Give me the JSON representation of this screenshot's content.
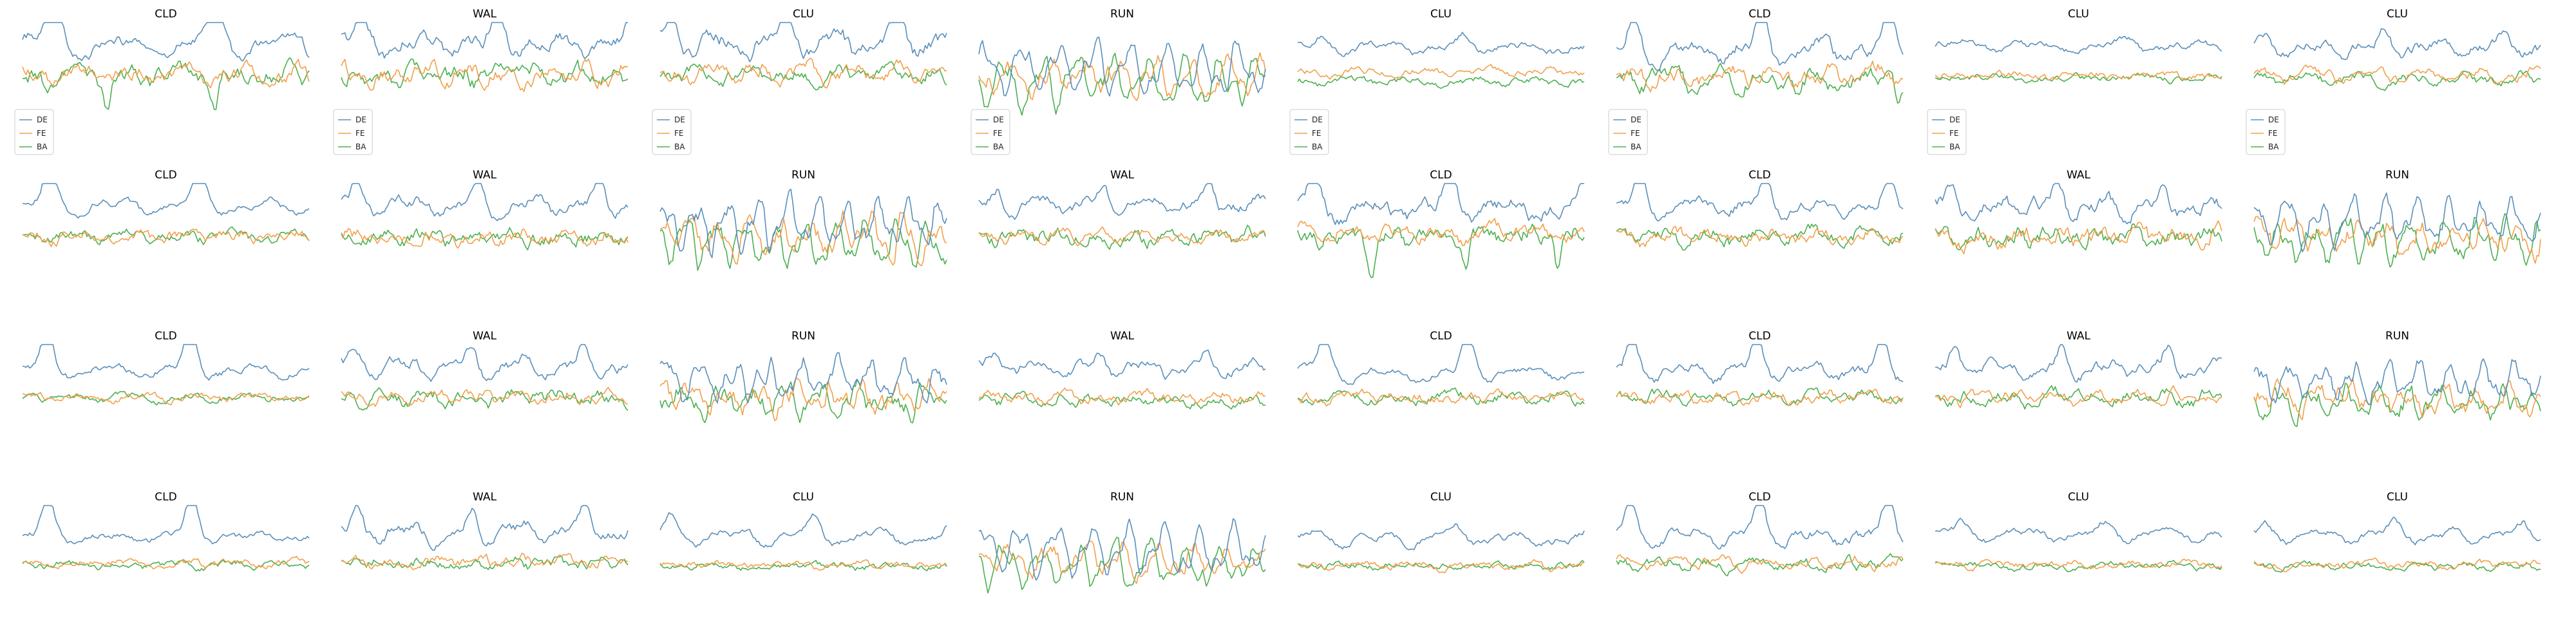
{
  "colors": {
    "DE": "#5b8fb9",
    "FE": "#f0a04b",
    "BA": "#4caf50"
  },
  "chart_data": {
    "type": "line",
    "rows": 4,
    "cols": 8,
    "series_names": [
      "DE",
      "FE",
      "BA"
    ],
    "grid": false,
    "axes_visible": false,
    "legend_location": "lower-left",
    "legend_row": 0,
    "x": {
      "start": 0,
      "end": 160,
      "step": 1
    },
    "panels": [
      {
        "title": "CLD",
        "legend": true,
        "series": {
          "DE": {
            "base": 2.5,
            "amp": 1.6,
            "period": 45,
            "peak": 3.5,
            "jitter": 0.3,
            "phase": 0.1
          },
          "FE": {
            "base": 0.0,
            "amp": 0.9,
            "period": 30,
            "jitter": 0.4,
            "phase": 1.1
          },
          "BA": {
            "base": 0.0,
            "amp": 0.9,
            "period": 30,
            "jitter": 0.5,
            "phase": 2.0,
            "dips": 2.4
          }
        }
      },
      {
        "title": "WAL",
        "legend": true,
        "series": {
          "DE": {
            "base": 2.6,
            "amp": 1.2,
            "period": 38,
            "peak": 2.5,
            "jitter": 0.4,
            "phase": 0.7
          },
          "FE": {
            "base": 0.0,
            "amp": 1.0,
            "period": 22,
            "jitter": 0.5,
            "phase": 0.3
          },
          "BA": {
            "base": 0.0,
            "amp": 0.8,
            "period": 22,
            "jitter": 0.5,
            "phase": 1.7
          }
        }
      },
      {
        "title": "CLU",
        "legend": true,
        "series": {
          "DE": {
            "base": 2.6,
            "amp": 1.5,
            "period": 32,
            "peak": 2.8,
            "jitter": 0.5,
            "phase": 1.4
          },
          "FE": {
            "base": 0.2,
            "amp": 0.9,
            "period": 26,
            "jitter": 0.4,
            "phase": 0.9
          },
          "BA": {
            "base": 0.0,
            "amp": 0.7,
            "period": 26,
            "jitter": 0.4,
            "phase": 2.5
          }
        }
      },
      {
        "title": "RUN",
        "legend": true,
        "series": {
          "DE": {
            "base": 0.5,
            "amp": 3.2,
            "period": 20,
            "peak": 0,
            "jitter": 0.4,
            "phase": 0.2
          },
          "FE": {
            "base": 0.0,
            "amp": 2.0,
            "period": 20,
            "jitter": 0.6,
            "phase": 1.9
          },
          "BA": {
            "base": -0.5,
            "amp": 3.0,
            "period": 20,
            "jitter": 0.5,
            "phase": 3.3
          }
        }
      },
      {
        "title": "CLU",
        "legend": true,
        "series": {
          "DE": {
            "base": 2.3,
            "amp": 0.6,
            "period": 40,
            "peak": 0.8,
            "jitter": 0.2,
            "phase": 0.5
          },
          "FE": {
            "base": 0.3,
            "amp": 0.4,
            "period": 34,
            "jitter": 0.2,
            "phase": 1.2
          },
          "BA": {
            "base": -0.5,
            "amp": 0.4,
            "period": 34,
            "jitter": 0.2,
            "phase": 2.2
          }
        }
      },
      {
        "title": "CLD",
        "legend": true,
        "series": {
          "DE": {
            "base": 2.0,
            "amp": 1.4,
            "period": 36,
            "peak": 3.0,
            "jitter": 0.4,
            "phase": 0.9
          },
          "FE": {
            "base": 0.0,
            "amp": 0.9,
            "period": 28,
            "jitter": 0.5,
            "phase": 0.4
          },
          "BA": {
            "base": -0.3,
            "amp": 0.9,
            "period": 28,
            "jitter": 0.5,
            "phase": 1.8,
            "dips": 1.5
          }
        }
      },
      {
        "title": "CLU",
        "legend": true,
        "series": {
          "DE": {
            "base": 2.4,
            "amp": 0.5,
            "period": 45,
            "peak": 0.6,
            "jitter": 0.2,
            "phase": 0.3
          },
          "FE": {
            "base": 0.0,
            "amp": 0.3,
            "period": 40,
            "jitter": 0.2,
            "phase": 1.0
          },
          "BA": {
            "base": -0.2,
            "amp": 0.3,
            "period": 40,
            "jitter": 0.2,
            "phase": 2.4
          }
        }
      },
      {
        "title": "CLU",
        "legend": true,
        "series": {
          "DE": {
            "base": 2.3,
            "amp": 0.9,
            "period": 34,
            "peak": 1.2,
            "jitter": 0.3,
            "phase": 1.7
          },
          "FE": {
            "base": 0.0,
            "amp": 0.6,
            "period": 30,
            "jitter": 0.3,
            "phase": 0.6
          },
          "BA": {
            "base": -0.3,
            "amp": 0.5,
            "period": 30,
            "jitter": 0.3,
            "phase": 2.0
          }
        }
      },
      {
        "title": "CLD",
        "legend": false,
        "series": {
          "DE": {
            "base": 2.5,
            "amp": 1.0,
            "period": 42,
            "peak": 3.0,
            "jitter": 0.2,
            "phase": 0.3
          },
          "FE": {
            "base": 0.0,
            "amp": 0.6,
            "period": 30,
            "jitter": 0.3,
            "phase": 1.2
          },
          "BA": {
            "base": 0.0,
            "amp": 0.5,
            "period": 30,
            "jitter": 0.3,
            "phase": 2.1
          }
        }
      },
      {
        "title": "WAL",
        "legend": false,
        "series": {
          "DE": {
            "base": 2.6,
            "amp": 1.2,
            "period": 34,
            "peak": 1.8,
            "jitter": 0.3,
            "phase": 0.9
          },
          "FE": {
            "base": 0.0,
            "amp": 0.7,
            "period": 24,
            "jitter": 0.4,
            "phase": 0.2
          },
          "BA": {
            "base": 0.0,
            "amp": 0.6,
            "period": 24,
            "jitter": 0.4,
            "phase": 1.5
          }
        }
      },
      {
        "title": "RUN",
        "legend": false,
        "series": {
          "DE": {
            "base": 1.0,
            "amp": 3.0,
            "period": 17,
            "peak": 0,
            "jitter": 0.5,
            "phase": 0.4
          },
          "FE": {
            "base": 0.0,
            "amp": 2.0,
            "period": 17,
            "jitter": 0.7,
            "phase": 1.6
          },
          "BA": {
            "base": -0.4,
            "amp": 2.8,
            "period": 17,
            "jitter": 0.6,
            "phase": 2.9
          }
        }
      },
      {
        "title": "WAL",
        "legend": false,
        "series": {
          "DE": {
            "base": 2.6,
            "amp": 1.0,
            "period": 30,
            "peak": 1.2,
            "jitter": 0.3,
            "phase": 0.6
          },
          "FE": {
            "base": 0.0,
            "amp": 0.6,
            "period": 22,
            "jitter": 0.3,
            "phase": 1.0
          },
          "BA": {
            "base": 0.0,
            "amp": 0.6,
            "period": 22,
            "jitter": 0.4,
            "phase": 2.3
          }
        }
      },
      {
        "title": "CLD",
        "legend": false,
        "series": {
          "DE": {
            "base": 2.3,
            "amp": 1.4,
            "period": 38,
            "peak": 2.8,
            "jitter": 0.4,
            "phase": 1.1
          },
          "FE": {
            "base": 0.3,
            "amp": 0.8,
            "period": 26,
            "jitter": 0.4,
            "phase": 0.7
          },
          "BA": {
            "base": 0.0,
            "amp": 0.9,
            "period": 26,
            "jitter": 0.5,
            "phase": 1.9,
            "dips": 2.6
          }
        }
      },
      {
        "title": "CLD",
        "legend": false,
        "series": {
          "DE": {
            "base": 2.4,
            "amp": 1.2,
            "period": 35,
            "peak": 2.4,
            "jitter": 0.3,
            "phase": 0.2
          },
          "FE": {
            "base": 0.0,
            "amp": 0.8,
            "period": 28,
            "jitter": 0.4,
            "phase": 1.4
          },
          "BA": {
            "base": 0.0,
            "amp": 0.7,
            "period": 28,
            "jitter": 0.4,
            "phase": 2.6
          }
        }
      },
      {
        "title": "WAL",
        "legend": false,
        "series": {
          "DE": {
            "base": 2.4,
            "amp": 1.2,
            "period": 30,
            "peak": 1.8,
            "jitter": 0.4,
            "phase": 0.8
          },
          "FE": {
            "base": 0.0,
            "amp": 0.8,
            "period": 22,
            "jitter": 0.5,
            "phase": 0.5
          },
          "BA": {
            "base": 0.0,
            "amp": 0.8,
            "period": 22,
            "jitter": 0.5,
            "phase": 1.7
          }
        }
      },
      {
        "title": "RUN",
        "legend": false,
        "series": {
          "DE": {
            "base": 1.2,
            "amp": 2.6,
            "period": 18,
            "peak": 0,
            "jitter": 0.5,
            "phase": 1.3
          },
          "FE": {
            "base": 0.0,
            "amp": 1.8,
            "period": 18,
            "jitter": 0.6,
            "phase": 0.6
          },
          "BA": {
            "base": -0.3,
            "amp": 2.2,
            "period": 18,
            "jitter": 0.6,
            "phase": 2.4
          }
        }
      },
      {
        "title": "CLD",
        "legend": false,
        "series": {
          "DE": {
            "base": 2.2,
            "amp": 0.8,
            "period": 40,
            "peak": 3.2,
            "jitter": 0.2,
            "phase": 0.4
          },
          "FE": {
            "base": 0.0,
            "amp": 0.4,
            "period": 32,
            "jitter": 0.2,
            "phase": 1.1
          },
          "BA": {
            "base": 0.0,
            "amp": 0.4,
            "period": 32,
            "jitter": 0.2,
            "phase": 2.2
          }
        }
      },
      {
        "title": "WAL",
        "legend": false,
        "series": {
          "DE": {
            "base": 2.5,
            "amp": 1.2,
            "period": 32,
            "peak": 1.4,
            "jitter": 0.3,
            "phase": 1.0
          },
          "FE": {
            "base": 0.0,
            "amp": 0.7,
            "period": 24,
            "jitter": 0.3,
            "phase": 0.3
          },
          "BA": {
            "base": 0.0,
            "amp": 0.7,
            "period": 24,
            "jitter": 0.4,
            "phase": 1.6
          }
        }
      },
      {
        "title": "RUN",
        "legend": false,
        "series": {
          "DE": {
            "base": 1.4,
            "amp": 2.4,
            "period": 19,
            "peak": 0,
            "jitter": 0.5,
            "phase": 0.5
          },
          "FE": {
            "base": 0.0,
            "amp": 1.4,
            "period": 19,
            "jitter": 0.6,
            "phase": 1.8
          },
          "BA": {
            "base": -0.2,
            "amp": 1.6,
            "period": 19,
            "jitter": 0.6,
            "phase": 3.0
          }
        }
      },
      {
        "title": "WAL",
        "legend": false,
        "series": {
          "DE": {
            "base": 2.4,
            "amp": 0.9,
            "period": 30,
            "peak": 1.0,
            "jitter": 0.3,
            "phase": 0.9
          },
          "FE": {
            "base": 0.0,
            "amp": 0.5,
            "period": 22,
            "jitter": 0.3,
            "phase": 0.4
          },
          "BA": {
            "base": -0.2,
            "amp": 0.5,
            "period": 22,
            "jitter": 0.3,
            "phase": 1.9
          }
        }
      },
      {
        "title": "CLD",
        "legend": false,
        "series": {
          "DE": {
            "base": 2.0,
            "amp": 0.8,
            "period": 40,
            "peak": 3.0,
            "jitter": 0.2,
            "phase": 0.2
          },
          "FE": {
            "base": 0.0,
            "amp": 0.4,
            "period": 30,
            "jitter": 0.3,
            "phase": 1.3
          },
          "BA": {
            "base": 0.0,
            "amp": 0.4,
            "period": 30,
            "jitter": 0.3,
            "phase": 2.4
          }
        }
      },
      {
        "title": "CLD",
        "legend": false,
        "series": {
          "DE": {
            "base": 2.2,
            "amp": 1.2,
            "period": 35,
            "peak": 2.8,
            "jitter": 0.3,
            "phase": 1.0
          },
          "FE": {
            "base": 0.0,
            "amp": 0.6,
            "period": 28,
            "jitter": 0.3,
            "phase": 0.6
          },
          "BA": {
            "base": 0.0,
            "amp": 0.6,
            "period": 28,
            "jitter": 0.3,
            "phase": 2.0
          }
        }
      },
      {
        "title": "WAL",
        "legend": false,
        "series": {
          "DE": {
            "base": 2.4,
            "amp": 1.0,
            "period": 30,
            "peak": 1.6,
            "jitter": 0.3,
            "phase": 0.3
          },
          "FE": {
            "base": 0.0,
            "amp": 0.6,
            "period": 22,
            "jitter": 0.3,
            "phase": 1.0
          },
          "BA": {
            "base": 0.0,
            "amp": 0.6,
            "period": 22,
            "jitter": 0.4,
            "phase": 2.1
          }
        }
      },
      {
        "title": "RUN",
        "legend": false,
        "series": {
          "DE": {
            "base": 1.4,
            "amp": 2.2,
            "period": 18,
            "peak": 0,
            "jitter": 0.5,
            "phase": 0.9
          },
          "FE": {
            "base": 0.0,
            "amp": 1.4,
            "period": 18,
            "jitter": 0.6,
            "phase": 2.0
          },
          "BA": {
            "base": -0.3,
            "amp": 1.4,
            "period": 18,
            "jitter": 0.6,
            "phase": 2.9
          }
        }
      },
      {
        "title": "CLD",
        "legend": false,
        "series": {
          "DE": {
            "base": 1.8,
            "amp": 0.6,
            "period": 40,
            "peak": 3.4,
            "jitter": 0.2,
            "phase": 0.3
          },
          "FE": {
            "base": -0.4,
            "amp": 0.3,
            "period": 30,
            "jitter": 0.2,
            "phase": 1.2
          },
          "BA": {
            "base": -0.5,
            "amp": 0.3,
            "period": 30,
            "jitter": 0.2,
            "phase": 2.1
          }
        }
      },
      {
        "title": "WAL",
        "legend": false,
        "series": {
          "DE": {
            "base": 2.2,
            "amp": 1.2,
            "period": 32,
            "peak": 1.6,
            "jitter": 0.3,
            "phase": 0.8
          },
          "FE": {
            "base": -0.3,
            "amp": 0.5,
            "period": 24,
            "jitter": 0.3,
            "phase": 0.4
          },
          "BA": {
            "base": -0.4,
            "amp": 0.5,
            "period": 24,
            "jitter": 0.3,
            "phase": 1.6
          }
        }
      },
      {
        "title": "CLU",
        "legend": false,
        "series": {
          "DE": {
            "base": 1.8,
            "amp": 1.0,
            "period": 40,
            "peak": 1.6,
            "jitter": 0.2,
            "phase": 1.6
          },
          "FE": {
            "base": -0.5,
            "amp": 0.3,
            "period": 34,
            "jitter": 0.2,
            "phase": 0.6
          },
          "BA": {
            "base": -0.6,
            "amp": 0.3,
            "period": 34,
            "jitter": 0.2,
            "phase": 2.3
          }
        }
      },
      {
        "title": "RUN",
        "legend": false,
        "series": {
          "DE": {
            "base": 0.8,
            "amp": 3.2,
            "period": 20,
            "peak": 0,
            "jitter": 0.4,
            "phase": 0.6
          },
          "FE": {
            "base": -0.2,
            "amp": 1.8,
            "period": 20,
            "jitter": 0.5,
            "phase": 1.8
          },
          "BA": {
            "base": -0.6,
            "amp": 2.8,
            "period": 20,
            "jitter": 0.5,
            "phase": 3.1
          }
        }
      },
      {
        "title": "CLU",
        "legend": false,
        "series": {
          "DE": {
            "base": 1.6,
            "amp": 0.7,
            "period": 38,
            "peak": 0.8,
            "jitter": 0.2,
            "phase": 0.5
          },
          "FE": {
            "base": -0.6,
            "amp": 0.3,
            "period": 32,
            "jitter": 0.2,
            "phase": 1.3
          },
          "BA": {
            "base": -0.6,
            "amp": 0.3,
            "period": 32,
            "jitter": 0.2,
            "phase": 2.2
          }
        }
      },
      {
        "title": "CLD",
        "legend": false,
        "series": {
          "DE": {
            "base": 1.8,
            "amp": 1.0,
            "period": 36,
            "peak": 3.0,
            "jitter": 0.3,
            "phase": 1.1
          },
          "FE": {
            "base": -0.4,
            "amp": 0.6,
            "period": 26,
            "jitter": 0.3,
            "phase": 0.4
          },
          "BA": {
            "base": -0.5,
            "amp": 0.5,
            "period": 26,
            "jitter": 0.3,
            "phase": 1.9
          }
        }
      },
      {
        "title": "CLU",
        "legend": false,
        "series": {
          "DE": {
            "base": 2.0,
            "amp": 0.8,
            "period": 40,
            "peak": 0.8,
            "jitter": 0.2,
            "phase": 0.2
          },
          "FE": {
            "base": -0.5,
            "amp": 0.3,
            "period": 34,
            "jitter": 0.2,
            "phase": 1.0
          },
          "BA": {
            "base": -0.6,
            "amp": 0.3,
            "period": 34,
            "jitter": 0.2,
            "phase": 2.5
          }
        }
      },
      {
        "title": "CLU",
        "legend": false,
        "series": {
          "DE": {
            "base": 1.9,
            "amp": 0.8,
            "period": 36,
            "peak": 0.8,
            "jitter": 0.2,
            "phase": 1.4
          },
          "FE": {
            "base": -0.5,
            "amp": 0.3,
            "period": 30,
            "jitter": 0.2,
            "phase": 0.7
          },
          "BA": {
            "base": -0.6,
            "amp": 0.3,
            "period": 30,
            "jitter": 0.2,
            "phase": 2.0
          }
        }
      }
    ]
  }
}
